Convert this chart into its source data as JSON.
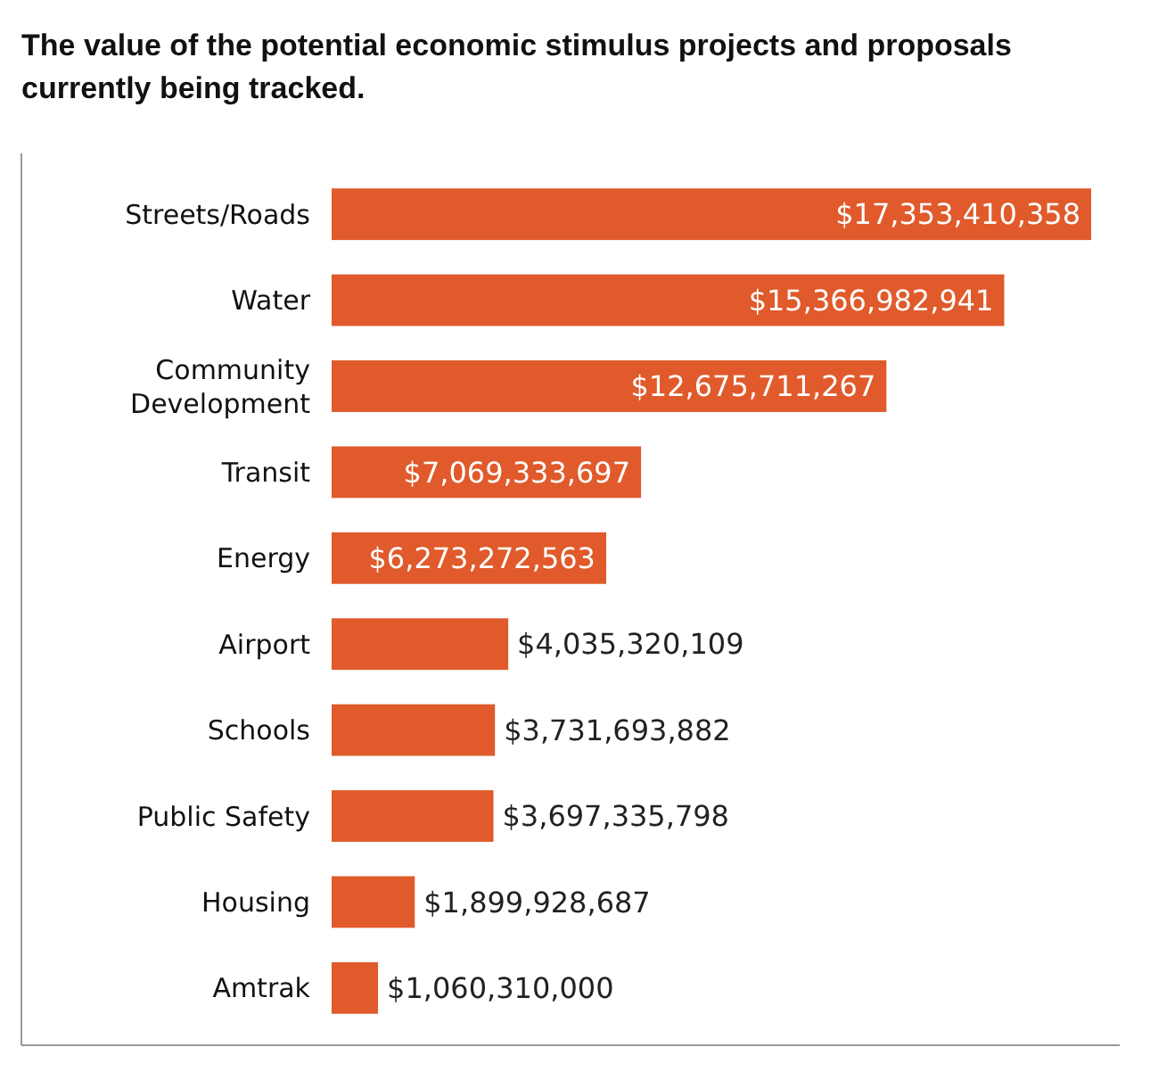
{
  "chart_data": {
    "type": "bar",
    "orientation": "horizontal",
    "title": "The value of the potential economic stimulus projects and proposals currently being tracked.",
    "categories": [
      "Streets/Roads",
      "Water",
      "Community Development",
      "Transit",
      "Energy",
      "Airport",
      "Schools",
      "Public Safety",
      "Housing",
      "Amtrak"
    ],
    "values": [
      17353410358,
      15366982941,
      12675711267,
      7069333697,
      6273272563,
      4035320109,
      3731693882,
      3697335798,
      1899928687,
      1060310000
    ],
    "value_labels": [
      "$17,353,410,358",
      "$15,366,982,941",
      "$12,675,711,267",
      "$7,069,333,697",
      "$6,273,272,563",
      "$4,035,320,109",
      "$3,731,693,882",
      "$3,697,335,798",
      "$1,899,928,687",
      "$1,060,310,000"
    ],
    "color": "#e05a2b"
  }
}
